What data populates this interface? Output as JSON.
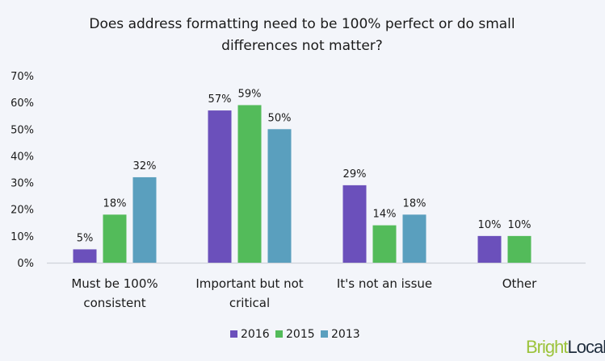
{
  "chart_data": {
    "type": "bar",
    "title": [
      "Does address formatting need to be 100% perfect or do small",
      "differences not matter?"
    ],
    "categories": [
      [
        "Must be 100%",
        "consistent"
      ],
      [
        "Important but not",
        "critical"
      ],
      [
        "It's not an issue"
      ],
      [
        "Other"
      ]
    ],
    "series": [
      {
        "name": "2016",
        "color": "#6b50bb",
        "values": [
          5,
          57,
          29,
          10
        ]
      },
      {
        "name": "2015",
        "color": "#53bb5a",
        "values": [
          18,
          59,
          14,
          10
        ]
      },
      {
        "name": "2013",
        "color": "#5a9fbe",
        "values": [
          32,
          50,
          18,
          null
        ]
      }
    ],
    "data_labels": [
      [
        "5%",
        "57%",
        "29%",
        "10%"
      ],
      [
        "18%",
        "59%",
        "14%",
        "10%"
      ],
      [
        "32%",
        "50%",
        "18%",
        ""
      ]
    ],
    "y_ticks": [
      "0%",
      "10%",
      "20%",
      "30%",
      "40%",
      "50%",
      "60%",
      "70%"
    ],
    "ylim": [
      0,
      70
    ],
    "grid": false,
    "legend_position": "bottom",
    "xlabel": "",
    "ylabel": ""
  },
  "branding": {
    "logo_part1": "Bright",
    "logo_part2": "Local",
    "logo_color1": "#9cc33b",
    "logo_color2": "#1f2d3d"
  },
  "background": "#f3f5fa"
}
